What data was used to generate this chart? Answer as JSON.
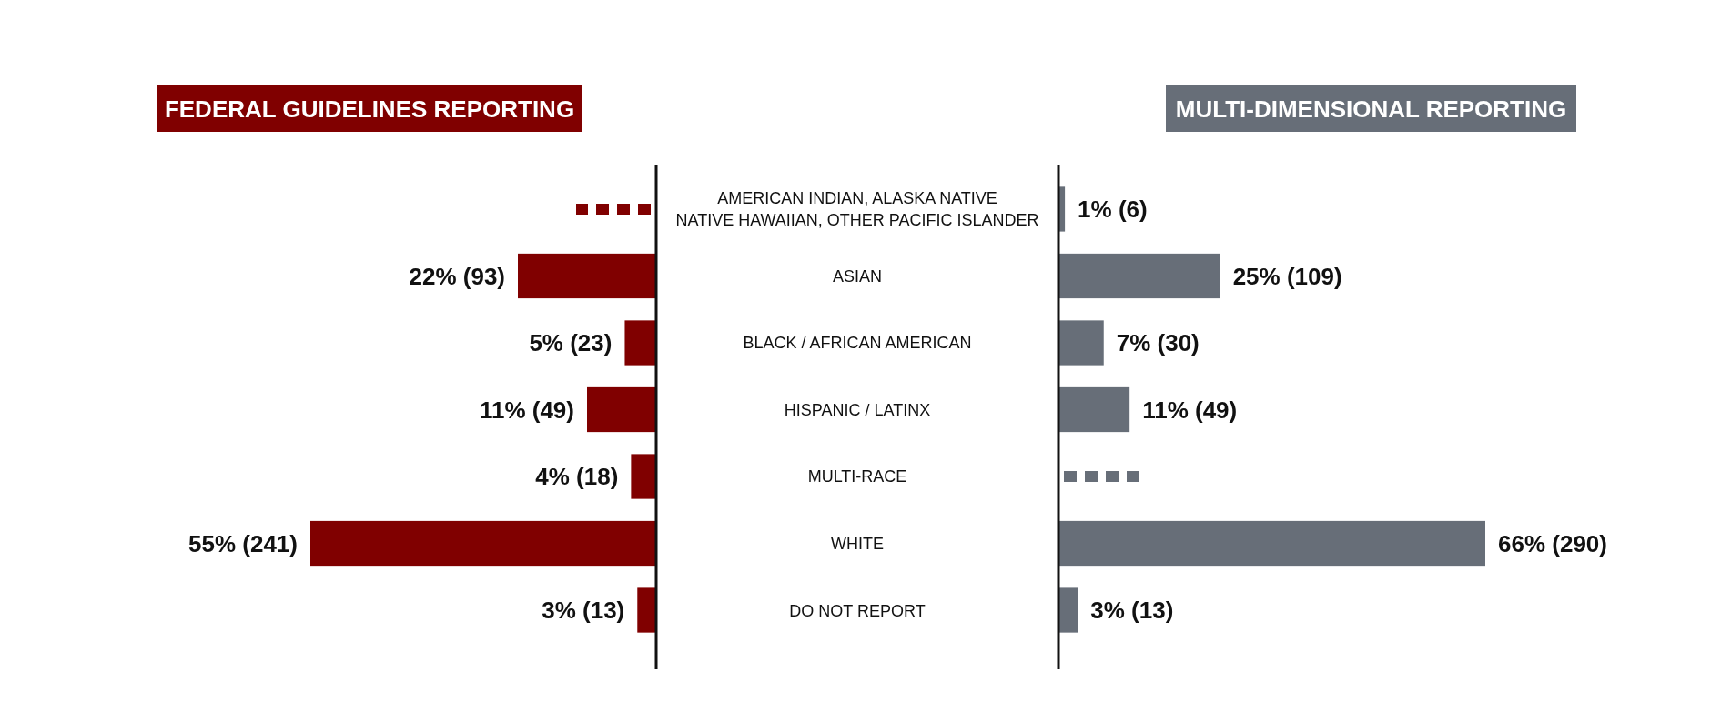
{
  "chart_data": [
    {
      "type": "bar",
      "orientation": "horizontal",
      "title": "FEDERAL GUIDELINES REPORTING",
      "categories": [
        "AMERICAN INDIAN, ALASKA NATIVE\nNATIVE HAWAIIAN, OTHER PACIFIC ISLANDER",
        "ASIAN",
        "BLACK / AFRICAN AMERICAN",
        "HISPANIC / LATINX",
        "MULTI-RACE",
        "WHITE",
        "DO NOT REPORT"
      ],
      "tick_labels": "y",
      "series": [
        {
          "color": "#800000",
          "values": [
            null,
            22,
            5,
            11,
            4,
            55,
            3
          ],
          "value_labels": [
            null,
            "22% (93)",
            "5% (23)",
            "11% (49)",
            "4% (18)",
            "55% (241)",
            "3% (13)"
          ]
        }
      ]
    },
    {
      "type": "bar",
      "orientation": "horizontal",
      "title": "MULTI-DIMENSIONAL REPORTING",
      "series": [
        {
          "color": "#676e78",
          "values": [
            1,
            25,
            7,
            11,
            null,
            66,
            3
          ],
          "value_labels": [
            "1% (6)",
            "25% (109)",
            "7% (30)",
            "11% (49)",
            null,
            "66% (290)",
            "3% (13)"
          ]
        }
      ]
    }
  ]
}
